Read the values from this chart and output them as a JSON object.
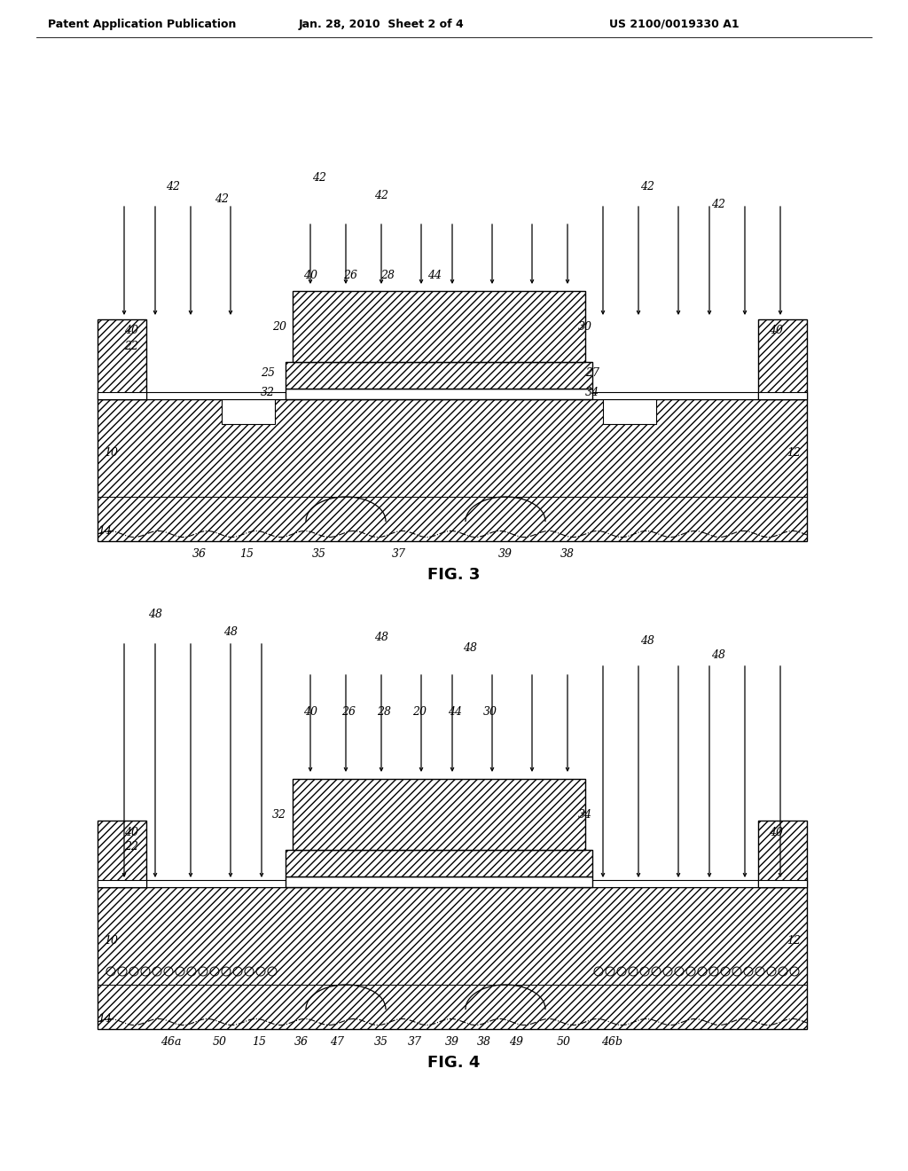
{
  "bg_color": "#ffffff",
  "header_left": "Patent Application Publication",
  "header_mid": "Jan. 28, 2010  Sheet 2 of 4",
  "header_right": "US 2100/0019330 A1",
  "fig3_label": "FIG. 3",
  "fig4_label": "FIG. 4",
  "line_color": "#000000"
}
